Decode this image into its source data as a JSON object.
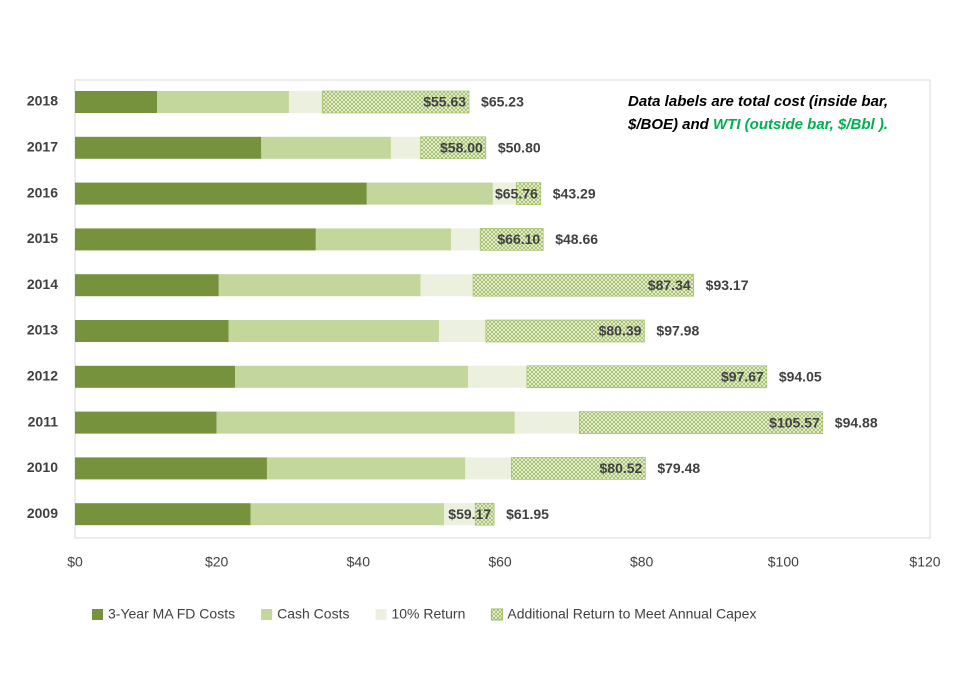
{
  "chart_data": {
    "type": "stacked_barh",
    "categories": [
      "2018",
      "2017",
      "2016",
      "2015",
      "2014",
      "2013",
      "2012",
      "2011",
      "2010",
      "2009"
    ],
    "series": [
      {
        "name": "3-Year MA FD Costs",
        "color": "#76923c",
        "values": [
          11.6,
          26.3,
          41.2,
          34.0,
          20.3,
          21.7,
          22.6,
          20.0,
          27.1,
          24.8
        ]
      },
      {
        "name": "Cash Costs",
        "color": "#c3d69b",
        "values": [
          18.6,
          18.3,
          17.8,
          19.1,
          28.5,
          29.7,
          32.9,
          42.1,
          28.0,
          27.3
        ]
      },
      {
        "name": "10% Return",
        "color": "#ebf1de",
        "values": [
          4.7,
          4.2,
          3.3,
          4.1,
          7.4,
          6.6,
          8.3,
          9.1,
          6.5,
          4.4
        ]
      },
      {
        "name": "Additional Return to Meet Annual Capex",
        "color": "#9bbb59",
        "pattern": "crosshatch",
        "values": [
          20.73,
          9.2,
          3.46,
          8.9,
          31.14,
          22.39,
          33.87,
          34.37,
          18.92,
          2.67
        ]
      }
    ],
    "totals": [
      55.63,
      58.0,
      65.76,
      66.1,
      87.34,
      80.39,
      97.67,
      105.57,
      80.52,
      59.17
    ],
    "total_labels": [
      "$55.63",
      "$58.00",
      "$65.76",
      "$66.10",
      "$87.34",
      "$80.39",
      "$97.67",
      "$105.57",
      "$80.52",
      "$59.17"
    ],
    "wti": [
      65.23,
      50.8,
      43.29,
      48.66,
      93.17,
      97.98,
      94.05,
      94.88,
      79.48,
      61.95
    ],
    "wti_labels": [
      "$65.23",
      "$50.80",
      "$43.29",
      "$48.66",
      "$93.17",
      "$97.98",
      "$94.05",
      "$94.88",
      "$79.48",
      "$61.95"
    ],
    "wti_color": "#00b050",
    "annotation": [
      "Data labels are total cost (inside bar, $/BOE) and ",
      "WTI (outside bar, $/Bbl )."
    ],
    "xlim": [
      0,
      120
    ],
    "xticks": [
      {
        "value": 0,
        "label": "$0"
      },
      {
        "value": 20,
        "label": "$20"
      },
      {
        "value": 40,
        "label": "$40"
      },
      {
        "value": 60,
        "label": "$60"
      },
      {
        "value": 80,
        "label": "$80"
      },
      {
        "value": 100,
        "label": "$100"
      },
      {
        "value": 120,
        "label": "$120"
      }
    ],
    "legend": "bottom"
  }
}
